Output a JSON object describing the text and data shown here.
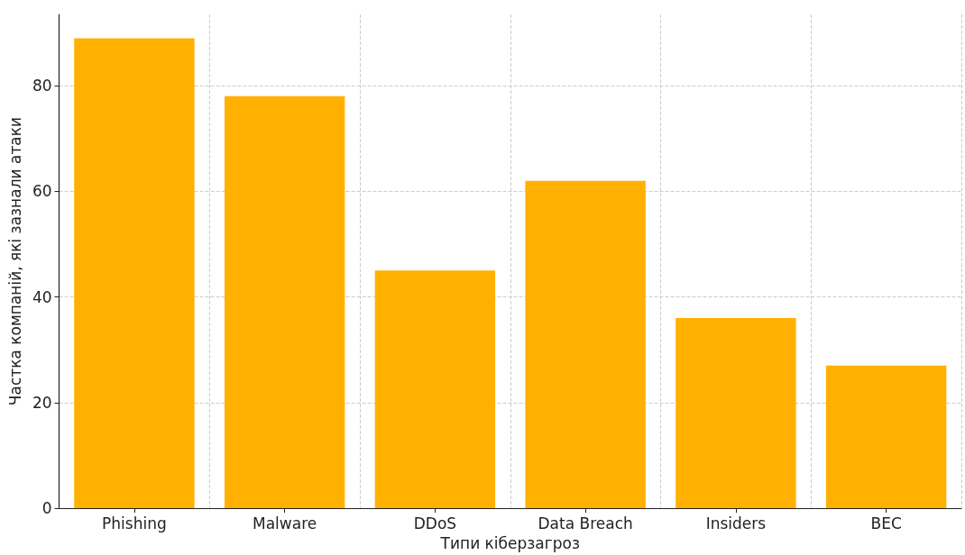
{
  "chart_data": {
    "type": "bar",
    "xlabel": "Типи кіберзагроз",
    "ylabel": "Частка компаній, які зазнали атаки",
    "categories": [
      "Phishing",
      "Malware",
      "DDoS",
      "Data Breach",
      "Insiders",
      "BEC"
    ],
    "values": [
      89,
      78,
      45,
      62,
      36,
      27
    ],
    "color": "#ffb000",
    "ylim": [
      0,
      93.5
    ],
    "yticks": [
      0,
      20,
      40,
      60,
      80
    ],
    "grid": true
  }
}
